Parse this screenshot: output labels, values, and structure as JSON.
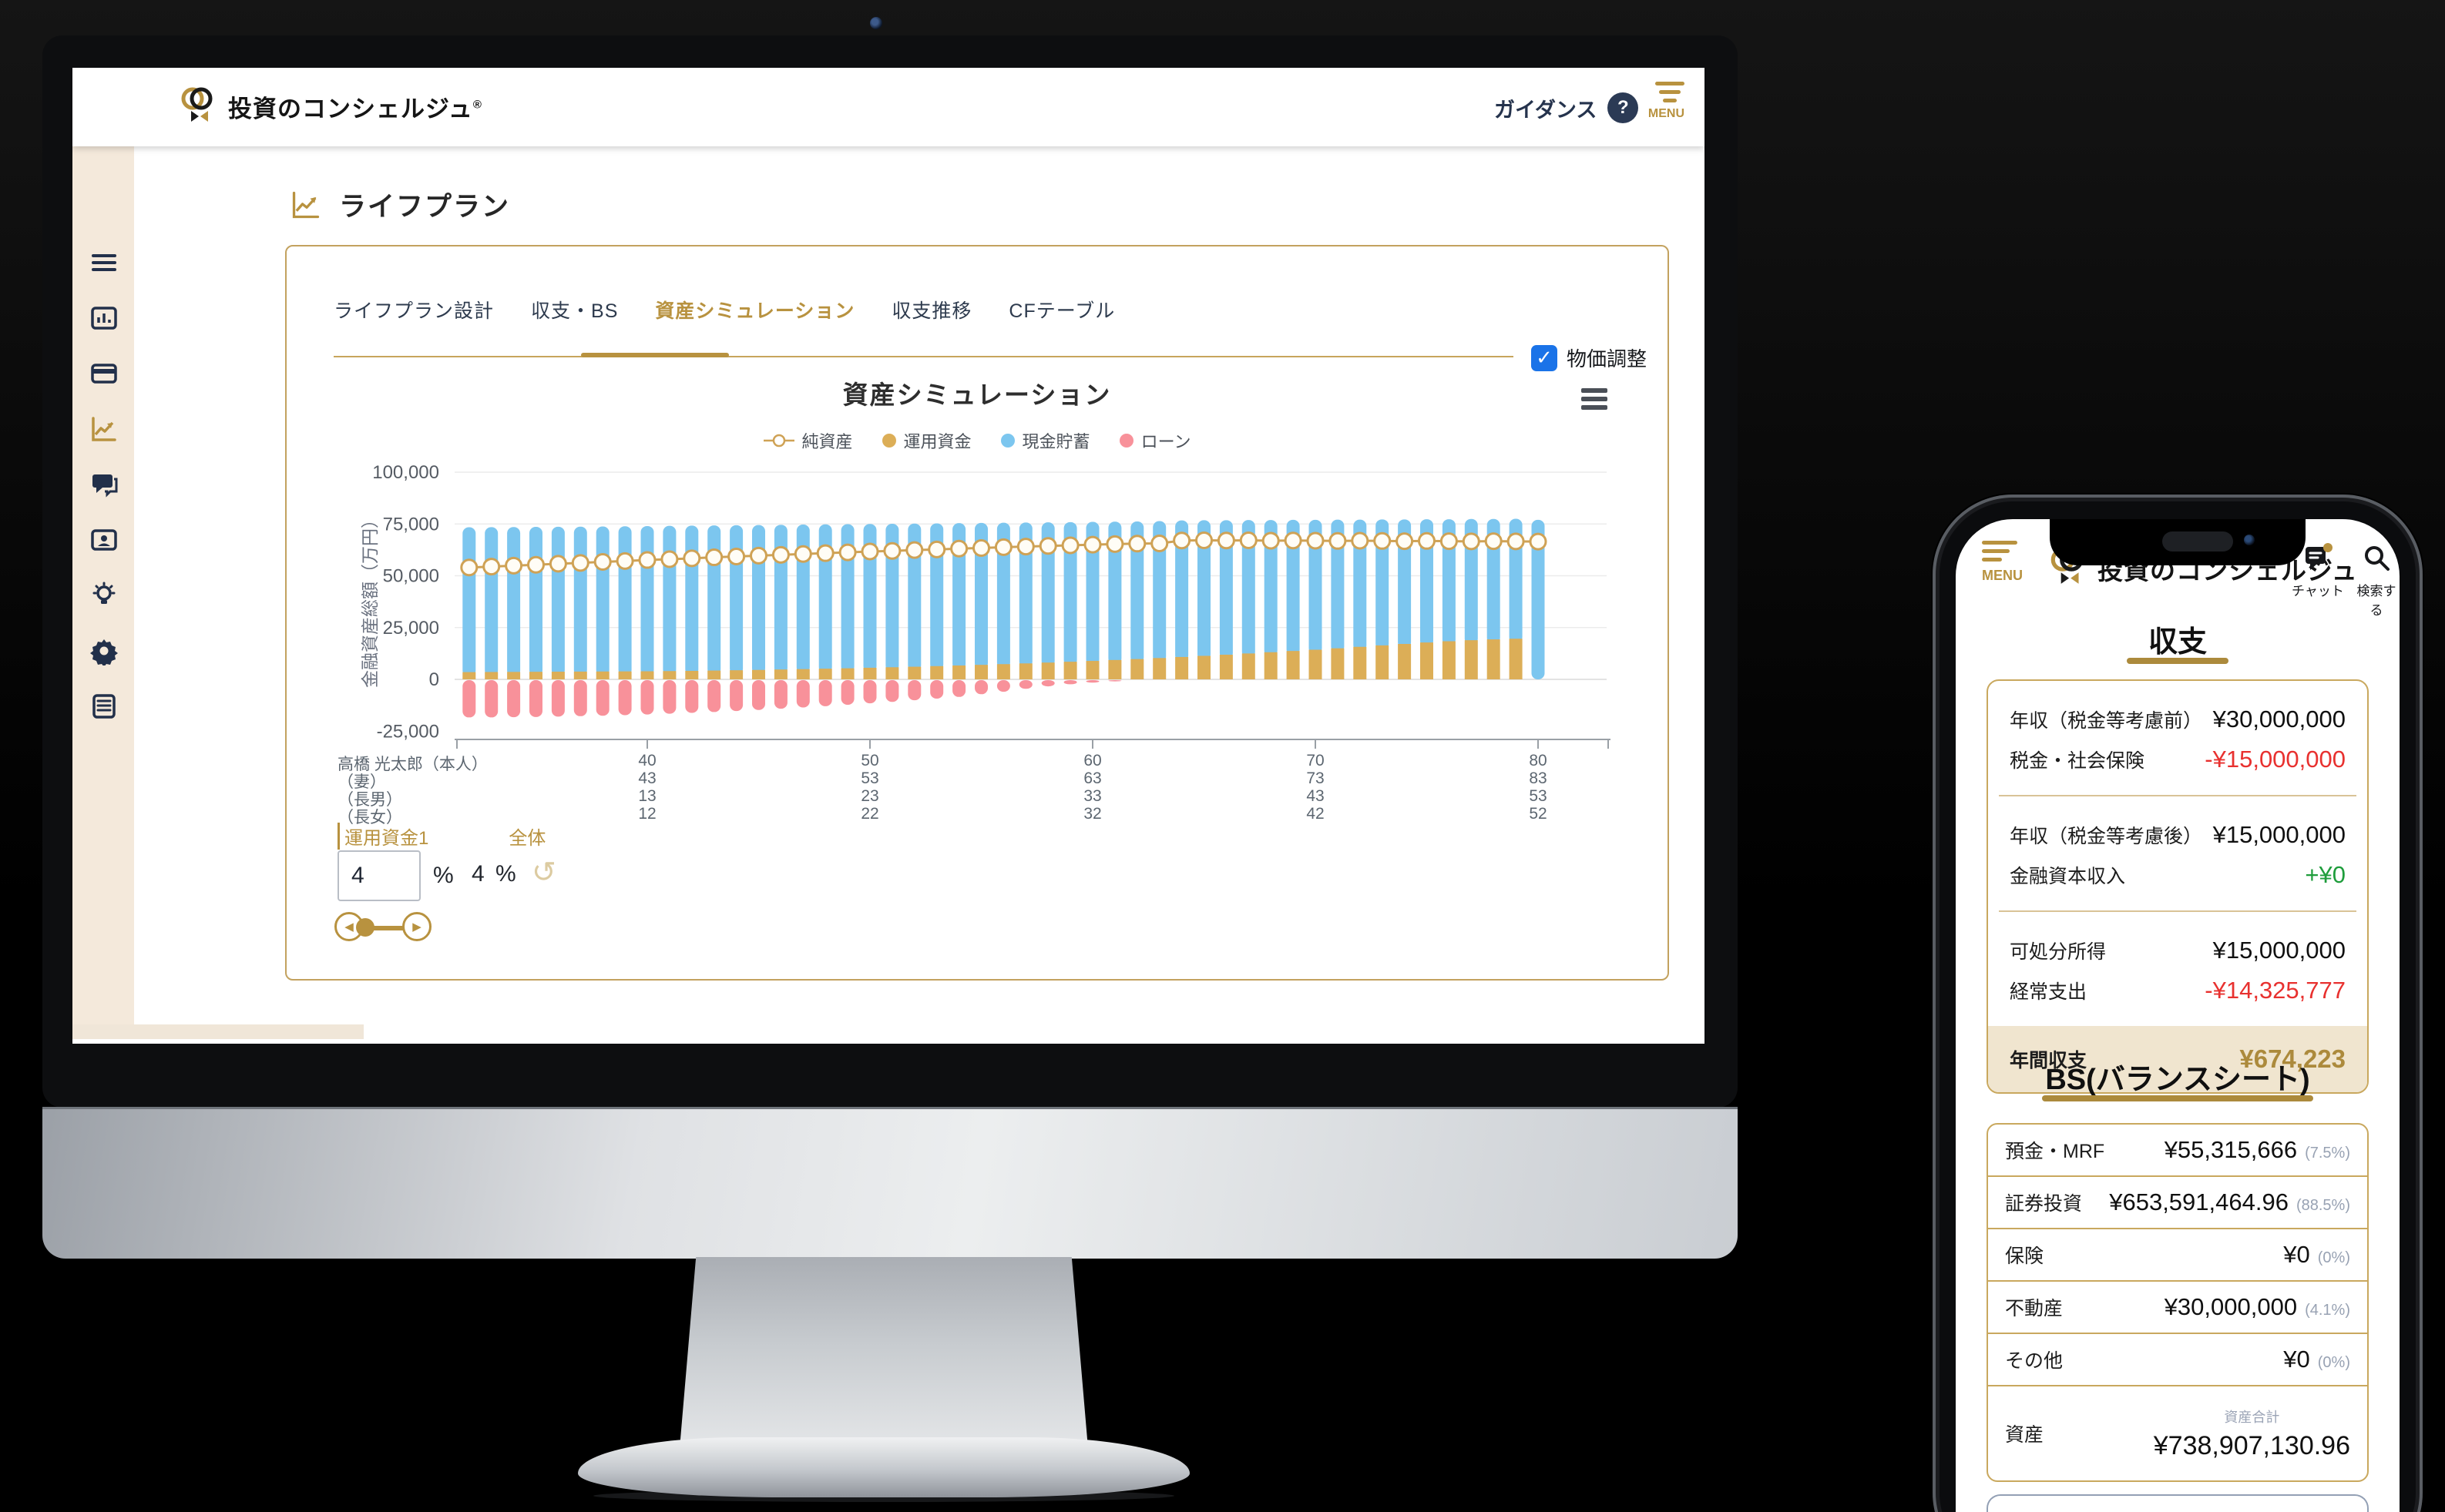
{
  "header": {
    "logo_text": "投資のコンシェルジュ",
    "reg_mark": "®",
    "guidance_label": "ガイダンス",
    "help_glyph": "?",
    "menu_label": "MENU"
  },
  "sidebar": {
    "items": [
      {
        "name": "menu"
      },
      {
        "name": "dashboard"
      },
      {
        "name": "card"
      },
      {
        "name": "lifeplan-chart",
        "active": true
      },
      {
        "name": "chat"
      },
      {
        "name": "contact-card"
      },
      {
        "name": "idea"
      },
      {
        "name": "settings"
      },
      {
        "name": "report"
      }
    ]
  },
  "main": {
    "page_title": "ライフプラン",
    "tabs": [
      {
        "label": "ライフプラン設計",
        "active": false
      },
      {
        "label": "収支・BS",
        "active": false
      },
      {
        "label": "資産シミュレーション",
        "active": true
      },
      {
        "label": "収支推移",
        "active": false
      },
      {
        "label": "CFテーブル",
        "active": false
      }
    ],
    "price_adjust_label": "物価調整",
    "checkbox_checked": "✓",
    "chart_title": "資産シミュレーション",
    "controls": {
      "tab1": "運用資金1",
      "tab2": "全体",
      "input_value": "4",
      "unit": "%",
      "overall_value": "4 %",
      "undo_glyph": "↺",
      "slider_left": "◀",
      "slider_right": "▶"
    }
  },
  "chart_data": {
    "type": "bar",
    "title": "資産シミュレーション",
    "ylabel": "金融資産総額（万円）",
    "ylim": [
      -25000,
      100000
    ],
    "y_ticks": [
      "100,000",
      "75,000",
      "50,000",
      "25,000",
      "0",
      "-25,000"
    ],
    "y_tick_values": [
      100000,
      75000,
      50000,
      25000,
      0,
      -25000
    ],
    "x_ticks": [
      40,
      50,
      60,
      70,
      80
    ],
    "legend_position": "top",
    "grid": true,
    "ages": [
      32,
      33,
      34,
      35,
      36,
      37,
      38,
      39,
      40,
      41,
      42,
      43,
      44,
      45,
      46,
      47,
      48,
      49,
      50,
      51,
      52,
      53,
      54,
      55,
      56,
      57,
      58,
      59,
      60,
      61,
      62,
      63,
      64,
      65,
      66,
      67,
      68,
      69,
      70,
      71,
      72,
      73,
      74,
      75,
      76,
      77,
      78,
      79,
      80
    ],
    "series": [
      {
        "name": "純資産",
        "type": "line",
        "values": [
          54000,
          54400,
          54900,
          55300,
          55800,
          56200,
          56700,
          57100,
          57600,
          58000,
          58400,
          58900,
          59300,
          59700,
          60100,
          60500,
          60900,
          61300,
          61700,
          62000,
          62400,
          62700,
          63100,
          63400,
          63800,
          64100,
          64400,
          64700,
          65000,
          65300,
          65500,
          65600,
          67000,
          67100,
          67000,
          67100,
          66900,
          67000,
          66900,
          66800,
          66900,
          66800,
          66700,
          66800,
          66700,
          66600,
          66700,
          66600,
          66500
        ]
      },
      {
        "name": "運用資金",
        "type": "bar",
        "values": [
          3500,
          3550,
          3600,
          3650,
          3700,
          3750,
          3800,
          3850,
          3900,
          4000,
          4100,
          4250,
          4400,
          4550,
          4750,
          4950,
          5150,
          5350,
          5600,
          5850,
          6100,
          6400,
          6700,
          7000,
          7350,
          7700,
          8100,
          8500,
          8900,
          9350,
          9800,
          10300,
          10800,
          11350,
          11900,
          12500,
          13100,
          13700,
          14300,
          15000,
          15700,
          16400,
          17100,
          17800,
          18400,
          18900,
          19300,
          19600,
          0
        ]
      },
      {
        "name": "現金貯蓄",
        "type": "bar",
        "values": [
          69900,
          69900,
          69900,
          69950,
          69950,
          69950,
          70000,
          70050,
          70100,
          70100,
          70100,
          70050,
          70000,
          69950,
          69850,
          69750,
          69650,
          69550,
          69400,
          69250,
          69100,
          68900,
          68700,
          68500,
          68250,
          68000,
          67700,
          67400,
          67100,
          66750,
          66400,
          66100,
          65900,
          65450,
          64900,
          64400,
          63800,
          63300,
          62700,
          62100,
          61400,
          60800,
          60100,
          59500,
          58900,
          58500,
          58100,
          57900,
          77000
        ]
      },
      {
        "name": "ローン",
        "type": "bar",
        "values": [
          -18000,
          -18000,
          -17900,
          -17800,
          -17600,
          -17400,
          -17200,
          -16900,
          -16600,
          -16200,
          -15800,
          -15400,
          -14900,
          -14400,
          -13800,
          -13200,
          -12600,
          -11900,
          -11200,
          -10500,
          -9700,
          -8900,
          -8100,
          -6800,
          -5600,
          -4200,
          -3000,
          -2000,
          -1200,
          -600,
          0,
          0,
          0,
          0,
          0,
          0,
          0,
          0,
          0,
          0,
          0,
          0,
          0,
          0,
          0,
          0,
          0,
          0,
          0
        ]
      }
    ],
    "colors": {
      "net_line": "#cfa255",
      "invest": "#dcae57",
      "cash": "#7cc6ef",
      "loan": "#f8919a",
      "grid": "#ececec",
      "zero_line": "#e3e3e3",
      "axis": "#9aa0a6",
      "tick_text": "#555b63"
    },
    "family_rows": [
      {
        "name": "高橋 光太郎（本人）",
        "values": [
          "40",
          "50",
          "60",
          "70",
          "80"
        ]
      },
      {
        "name": "（妻）",
        "values": [
          "43",
          "53",
          "63",
          "73",
          "83"
        ]
      },
      {
        "name": "（長男）",
        "values": [
          "13",
          "23",
          "33",
          "43",
          "53"
        ]
      },
      {
        "name": "（長女）",
        "values": [
          "12",
          "22",
          "32",
          "42",
          "52"
        ]
      }
    ]
  },
  "phone": {
    "menu_label": "MENU",
    "logo_text": "投資のコンシェルジュ",
    "chat_label": "チャット",
    "search_label": "検索する",
    "income": {
      "title": "収支",
      "rows": [
        {
          "label": "年収（税金等考慮前）",
          "value": "¥30,000,000",
          "tone": "normal"
        },
        {
          "label": "税金・社会保険",
          "value": "-¥15,000,000",
          "tone": "neg"
        },
        {
          "label": "年収（税金等考慮後）",
          "value": "¥15,000,000",
          "tone": "normal"
        },
        {
          "label": "金融資本収入",
          "value": "+¥0",
          "tone": "pos"
        },
        {
          "label": "可処分所得",
          "value": "¥15,000,000",
          "tone": "normal"
        },
        {
          "label": "経常支出",
          "value": "-¥14,325,777",
          "tone": "neg"
        }
      ],
      "footer": {
        "label": "年間収支",
        "value": "¥674,223"
      }
    },
    "bs": {
      "title": "BS(バランスシート)",
      "rows": [
        {
          "label": "預金・MRF",
          "value": "¥55,315,666",
          "pct": "(7.5%)"
        },
        {
          "label": "証券投資",
          "value": "¥653,591,464.96",
          "pct": "(88.5%)"
        },
        {
          "label": "保険",
          "value": "¥0",
          "pct": "(0%)"
        },
        {
          "label": "不動産",
          "value": "¥30,000,000",
          "pct": "(4.1%)"
        },
        {
          "label": "その他",
          "value": "¥0",
          "pct": "(0%)"
        }
      ],
      "total": {
        "label": "資産",
        "caption": "資産合計",
        "value": "¥738,907,130.96"
      }
    }
  },
  "colors": {
    "brand_gold": "#b8923f",
    "navy": "#22304a",
    "checkbox_blue": "#1a73e8",
    "negative_red": "#e8312f",
    "positive_green": "#1f9d3c",
    "footer_beige": "#f0e5cf",
    "sidebar_beige": "#f4e9db",
    "card_border_gold": "#c9a85e"
  }
}
